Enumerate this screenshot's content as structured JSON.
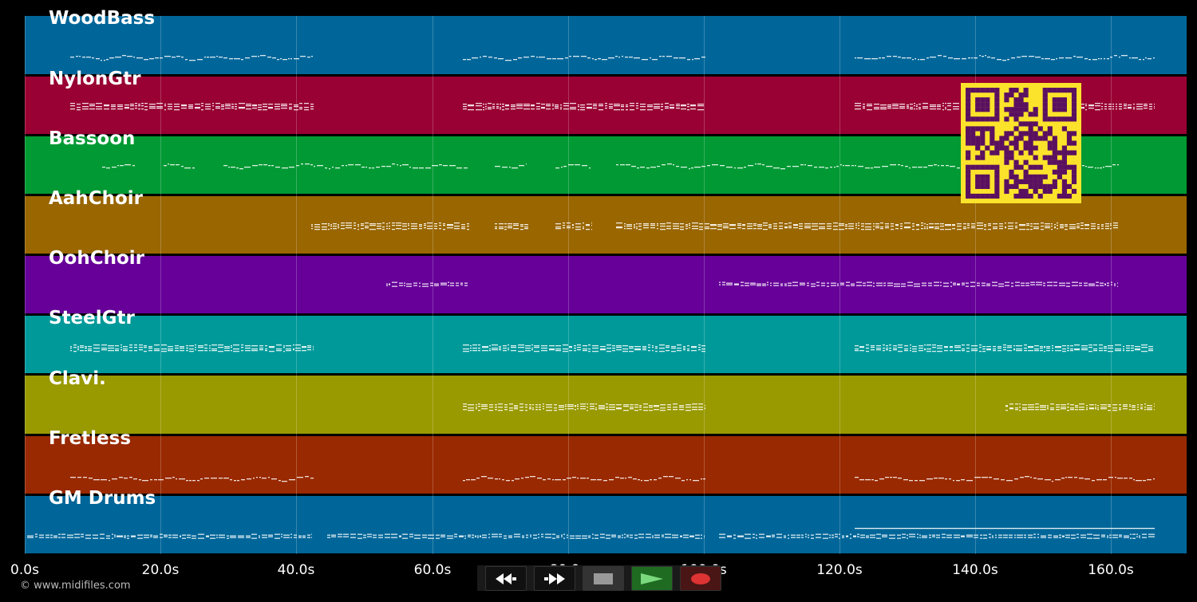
{
  "app": {
    "copyright": "© www.midifiles.com"
  },
  "timeline": {
    "ticks": [
      "0.0s",
      "20.0s",
      "40.0s",
      "60.0s",
      "80.0s",
      "100.0s",
      "120.0s",
      "140.0s",
      "160.0s"
    ]
  },
  "tracks": [
    {
      "name": "WoodBass",
      "color": "#006699"
    },
    {
      "name": "NylonGtr",
      "color": "#990033"
    },
    {
      "name": "Bassoon",
      "color": "#009933"
    },
    {
      "name": "AahChoir",
      "color": "#996600"
    },
    {
      "name": "OohChoir",
      "color": "#660099"
    },
    {
      "name": "SteelGtr",
      "color": "#009999"
    },
    {
      "name": "Clavi.",
      "color": "#999900"
    },
    {
      "name": "Fretless",
      "color": "#992900"
    },
    {
      "name": "GM Drums",
      "color": "#006699"
    }
  ],
  "transport": {
    "rewind": "rewind-icon",
    "fast_forward": "fast-forward-icon",
    "stop": "stop-icon",
    "play": "play-icon",
    "record": "record-icon"
  },
  "qr": {
    "icon": "qr-code-icon",
    "fg": "#5a1060",
    "bg": "#fbe32b"
  }
}
